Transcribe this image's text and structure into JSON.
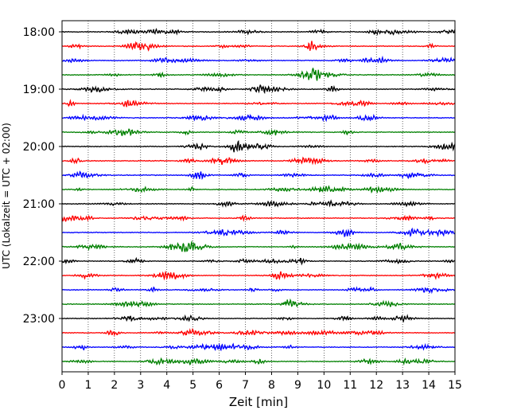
{
  "chart_data": {
    "type": "line",
    "title": "",
    "xlabel": "Zeit  [min]",
    "ylabel": "UTC (Lokalzeit = UTC + 02:00)",
    "xlim": [
      0,
      15
    ],
    "x_ticks": [
      0,
      1,
      2,
      3,
      4,
      5,
      6,
      7,
      8,
      9,
      10,
      11,
      12,
      13,
      14,
      15
    ],
    "y_tick_labels": [
      "18:00",
      "19:00",
      "20:00",
      "21:00",
      "22:00",
      "23:00"
    ],
    "trace_start_minutes": [
      1080,
      1095,
      1110,
      1125,
      1140,
      1155,
      1170,
      1185,
      1200,
      1215,
      1230,
      1245,
      1260,
      1275,
      1290,
      1305,
      1320,
      1335,
      1350,
      1365,
      1380,
      1395,
      1410,
      1425
    ],
    "trace_colors": [
      "#000000",
      "#ff0000",
      "#0000ff",
      "#008000"
    ],
    "grid": "vertical dotted",
    "legend": "none"
  }
}
